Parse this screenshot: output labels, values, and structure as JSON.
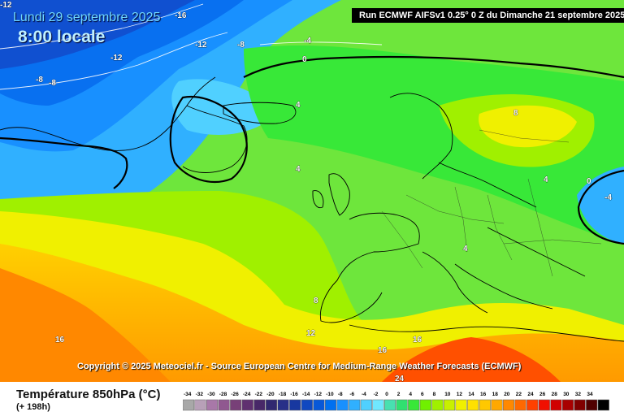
{
  "header": {
    "date": "Lundi 29 septembre 2025",
    "time": "8:00 locale",
    "run": "Run ECMWF AIFSv1 0.25° 0 Z du Dimanche 21 septembre 2025"
  },
  "map": {
    "copyright": "Copyright © 2025 Meteociel.fr - Source European Centre for Medium-Range Weather Forecasts (ECMWF)",
    "contour_labels": [
      {
        "value": "-16"
      },
      {
        "value": "-12"
      },
      {
        "value": "-12"
      },
      {
        "value": "-8"
      },
      {
        "value": "-8"
      },
      {
        "value": "-8"
      },
      {
        "value": "-4"
      },
      {
        "value": "0"
      },
      {
        "value": "4"
      },
      {
        "value": "4"
      },
      {
        "value": "8"
      },
      {
        "value": "4"
      },
      {
        "value": "0"
      },
      {
        "value": "-4"
      },
      {
        "value": "4"
      },
      {
        "value": "8"
      },
      {
        "value": "12"
      },
      {
        "value": "16"
      },
      {
        "value": "16"
      },
      {
        "value": "16"
      },
      {
        "value": "24"
      },
      {
        "value": "-12"
      }
    ]
  },
  "footer": {
    "title": "Température 850hPa (°C)",
    "lead": "(+ 198h)"
  },
  "legend": {
    "values": [
      "-34",
      "-32",
      "-30",
      "-28",
      "-26",
      "-24",
      "-22",
      "-20",
      "-18",
      "-16",
      "-14",
      "-12",
      "-10",
      "-8",
      "-6",
      "-4",
      "-2",
      "0",
      "2",
      "4",
      "6",
      "8",
      "10",
      "12",
      "14",
      "16",
      "18",
      "20",
      "22",
      "24",
      "26",
      "28",
      "30",
      "32",
      "34"
    ],
    "colors": [
      "#a8a8a8",
      "#b8a0b8",
      "#a878a8",
      "#905890",
      "#784078",
      "#603070",
      "#482868",
      "#302870",
      "#283088",
      "#1838a0",
      "#1048c0",
      "#0858d8",
      "#0070f0",
      "#1890ff",
      "#30b0ff",
      "#50d0ff",
      "#70e8ff",
      "#48e0b0",
      "#30e070",
      "#38e838",
      "#70f000",
      "#a0f000",
      "#c8f000",
      "#f0f000",
      "#ffe000",
      "#ffc800",
      "#ffa800",
      "#ff8800",
      "#ff6800",
      "#ff4000",
      "#f01000",
      "#d00000",
      "#a80000",
      "#800000",
      "#500000",
      "#000000"
    ]
  }
}
